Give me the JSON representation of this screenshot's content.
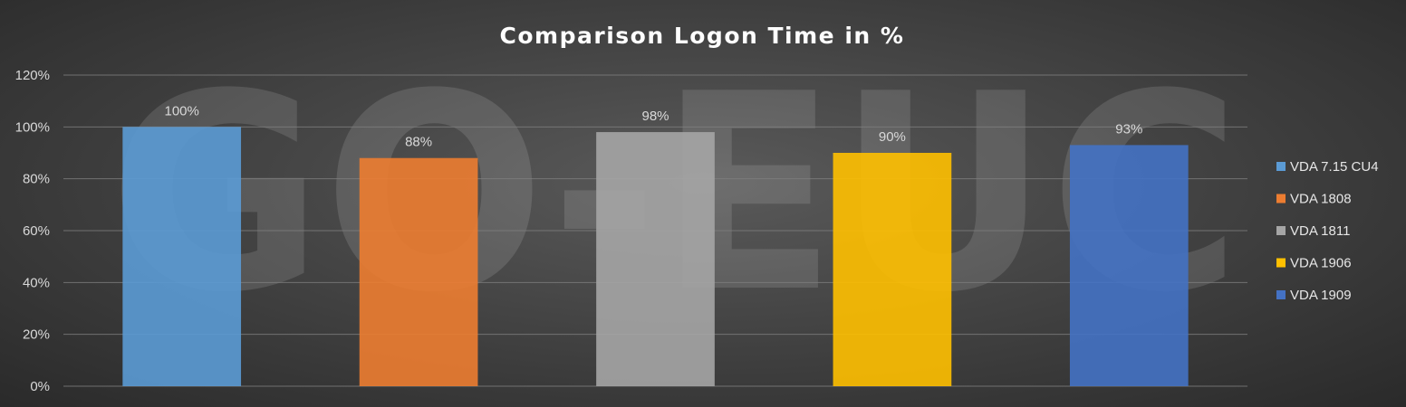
{
  "chart_data": {
    "type": "bar",
    "title": "Comparison Logon Time in %",
    "xlabel": "",
    "ylabel": "",
    "ylim": [
      0,
      120
    ],
    "y_ticks": [
      "0%",
      "20%",
      "40%",
      "60%",
      "80%",
      "100%",
      "120%"
    ],
    "y_tick_values": [
      0,
      20,
      40,
      60,
      80,
      100,
      120
    ],
    "grid": true,
    "legend_position": "right",
    "watermark": "GO-EUC",
    "series": [
      {
        "name": "VDA 7.15 CU4",
        "value": 100,
        "label": "100%",
        "color": "#5b9bd5"
      },
      {
        "name": "VDA 1808",
        "value": 88,
        "label": "88%",
        "color": "#ed7d31"
      },
      {
        "name": "VDA 1811",
        "value": 98,
        "label": "98%",
        "color": "#a5a5a5"
      },
      {
        "name": "VDA 1906",
        "value": 90,
        "label": "90%",
        "color": "#ffc000"
      },
      {
        "name": "VDA 1909",
        "value": 93,
        "label": "93%",
        "color": "#4472c4"
      }
    ]
  }
}
